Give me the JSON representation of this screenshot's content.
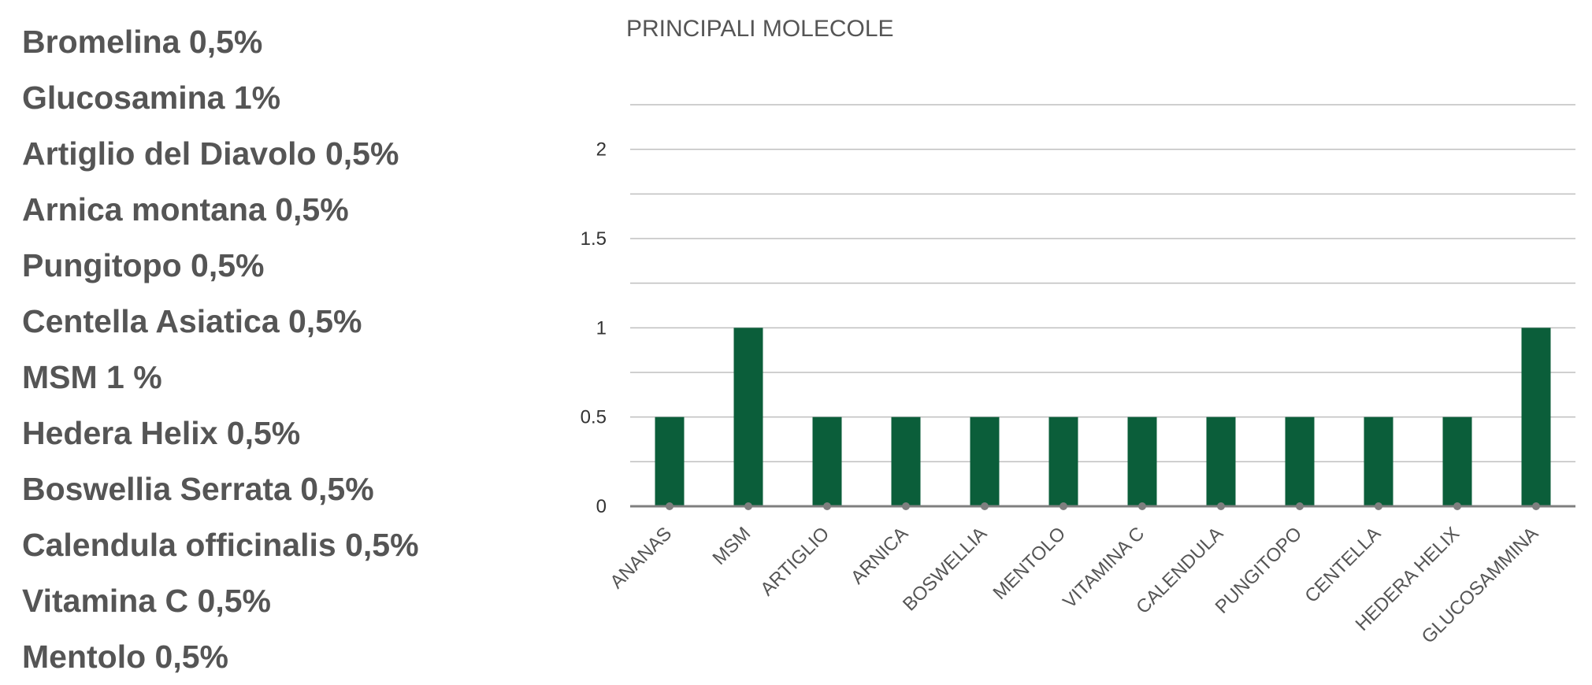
{
  "ingredients": [
    "Bromelina 0,5%",
    "Glucosamina 1%",
    "Artiglio del Diavolo 0,5%",
    "Arnica montana 0,5%",
    "Pungitopo 0,5%",
    "Centella Asiatica 0,5%",
    "MSM 1 %",
    "Hedera Helix 0,5%",
    "Boswellia Serrata 0,5%",
    "Calendula officinalis 0,5%",
    "Vitamina C 0,5%",
    "Mentolo 0,5%"
  ],
  "chart_data": {
    "type": "bar",
    "title": "PRINCIPALI MOLECOLE",
    "categories": [
      "ANANAS",
      "MSM",
      "ARTIGLIO",
      "ARNICA",
      "BOSWELLIA",
      "MENTOLO",
      "VITAMINA C",
      "CALENDULA",
      "PUNGITOPO",
      "CENTELLA",
      "HEDERA HELIX",
      "GLUCOSAMMINA"
    ],
    "values": [
      0.5,
      1,
      0.5,
      0.5,
      0.5,
      0.5,
      0.5,
      0.5,
      0.5,
      0.5,
      0.5,
      1
    ],
    "ylim": [
      0,
      2.25
    ],
    "yticks": [
      "0",
      "0.5",
      "1",
      "1.5",
      "2"
    ],
    "grid": true,
    "bar_color": "#0b5e3a",
    "grid_color": "#bfbfbf",
    "axis_color": "#7f7f7f",
    "marker_color": "#7f7f7f"
  }
}
